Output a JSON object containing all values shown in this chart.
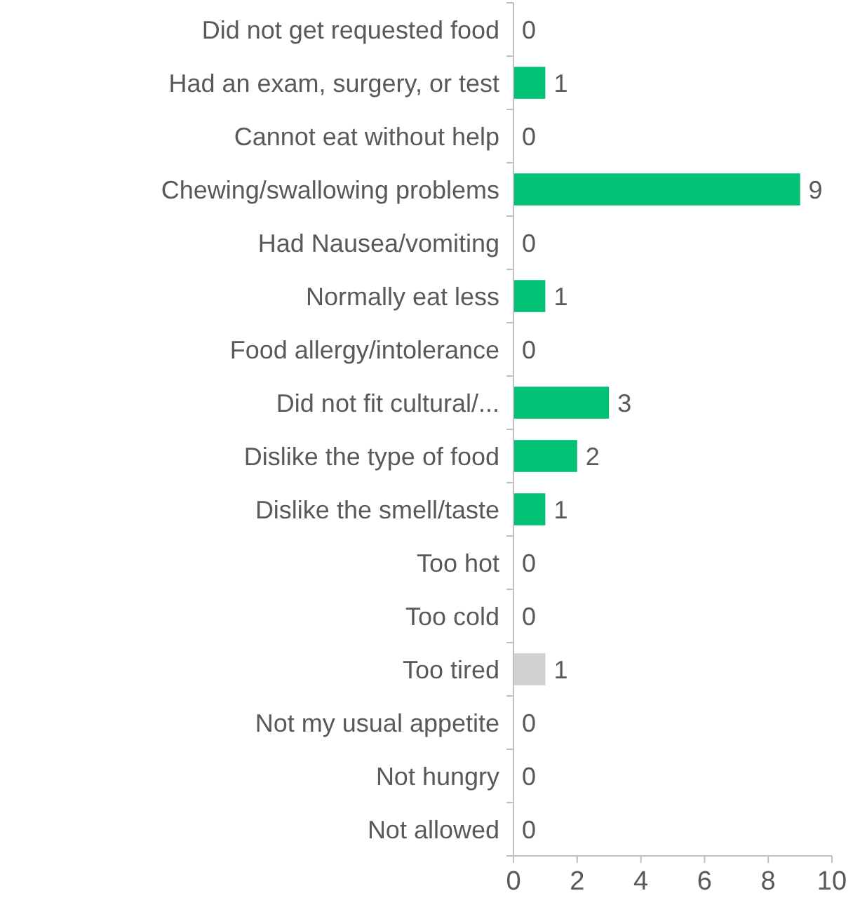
{
  "chart_data": {
    "type": "bar",
    "orientation": "horizontal",
    "categories": [
      "Did not get requested food",
      "Had an exam, surgery, or test",
      "Cannot eat without help",
      "Chewing/swallowing problems",
      "Had Nausea/vomiting",
      "Normally eat less",
      "Food allergy/intolerance",
      "Did not fit cultural/...",
      "Dislike the type of food",
      "Dislike the smell/taste",
      "Too hot",
      "Too cold",
      "Too tired",
      "Not my usual appetite",
      "Not hungry",
      "Not allowed"
    ],
    "values": [
      0,
      1,
      0,
      9,
      0,
      1,
      0,
      3,
      2,
      1,
      0,
      0,
      1,
      0,
      0,
      0
    ],
    "colors": [
      "#00c176",
      "#00c176",
      "#00c176",
      "#00c176",
      "#00c176",
      "#00c176",
      "#00c176",
      "#00c176",
      "#00c176",
      "#00c176",
      "#00c176",
      "#00c176",
      "#d0d0d0",
      "#00c176",
      "#00c176",
      "#00c176"
    ],
    "xlim": [
      0,
      10
    ],
    "xticks": [
      0,
      2,
      4,
      6,
      8,
      10
    ],
    "data_labels": true
  }
}
